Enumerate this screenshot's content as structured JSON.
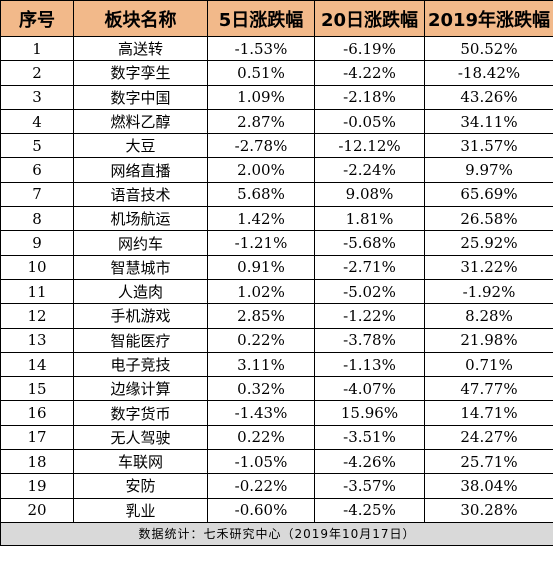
{
  "headers": [
    "序号",
    "板块名称",
    "5日涨跌幅",
    "20日涨跌幅",
    "2019年涨跌幅"
  ],
  "rows": [
    [
      "1",
      "高送转",
      "-1.53%",
      "-6.19%",
      "50.52%"
    ],
    [
      "2",
      "数字孪生",
      "0.51%",
      "-4.22%",
      "-18.42%"
    ],
    [
      "3",
      "数字中国",
      "1.09%",
      "-2.18%",
      "43.26%"
    ],
    [
      "4",
      "燃料乙醇",
      "2.87%",
      "-0.05%",
      "34.11%"
    ],
    [
      "5",
      "大豆",
      "-2.78%",
      "-12.12%",
      "31.57%"
    ],
    [
      "6",
      "网络直播",
      "2.00%",
      "-2.24%",
      "9.97%"
    ],
    [
      "7",
      "语音技术",
      "5.68%",
      "9.08%",
      "65.69%"
    ],
    [
      "8",
      "机场航运",
      "1.42%",
      "1.81%",
      "26.58%"
    ],
    [
      "9",
      "网约车",
      "-1.21%",
      "-5.68%",
      "25.92%"
    ],
    [
      "10",
      "智慧城市",
      "0.91%",
      "-2.71%",
      "31.22%"
    ],
    [
      "11",
      "人造肉",
      "1.02%",
      "-5.02%",
      "-1.92%"
    ],
    [
      "12",
      "手机游戏",
      "2.85%",
      "-1.22%",
      "8.28%"
    ],
    [
      "13",
      "智能医疗",
      "0.22%",
      "-3.78%",
      "21.98%"
    ],
    [
      "14",
      "电子竞技",
      "3.11%",
      "-1.13%",
      "0.71%"
    ],
    [
      "15",
      "边缘计算",
      "0.32%",
      "-4.07%",
      "47.77%"
    ],
    [
      "16",
      "数字货币",
      "-1.43%",
      "15.96%",
      "14.71%"
    ],
    [
      "17",
      "无人驾驶",
      "0.22%",
      "-3.51%",
      "24.27%"
    ],
    [
      "18",
      "车联网",
      "-1.05%",
      "-4.26%",
      "25.71%"
    ],
    [
      "19",
      "安防",
      "-0.22%",
      "-3.57%",
      "38.04%"
    ],
    [
      "20",
      "乳业",
      "-0.60%",
      "-4.25%",
      "30.28%"
    ]
  ],
  "footer": "数据统计：七禾研究中心（2019年10月17日）",
  "colors": {
    "header_bg": "#f2b98a",
    "footer_bg": "#d9d9d9"
  }
}
